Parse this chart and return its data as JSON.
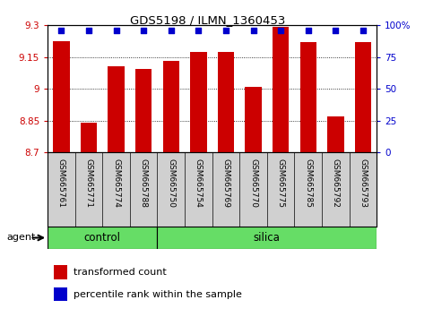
{
  "title": "GDS5198 / ILMN_1360453",
  "samples": [
    "GSM665761",
    "GSM665771",
    "GSM665774",
    "GSM665788",
    "GSM665750",
    "GSM665754",
    "GSM665769",
    "GSM665770",
    "GSM665775",
    "GSM665785",
    "GSM665792",
    "GSM665793"
  ],
  "transformed_counts": [
    9.225,
    8.84,
    9.105,
    9.095,
    9.13,
    9.175,
    9.175,
    9.01,
    9.295,
    9.22,
    8.87,
    9.22
  ],
  "percentile_ranks": [
    96,
    96,
    96,
    96,
    96,
    96,
    96,
    96,
    96,
    96,
    96,
    96
  ],
  "ymin": 8.7,
  "ymax": 9.3,
  "yticks": [
    8.7,
    8.85,
    9.0,
    9.15,
    9.3
  ],
  "ytick_labels": [
    "8.7",
    "8.85",
    "9",
    "9.15",
    "9.3"
  ],
  "y2ticks": [
    0,
    25,
    50,
    75,
    100
  ],
  "y2tick_labels": [
    "0",
    "25",
    "50",
    "75",
    "100%"
  ],
  "bar_color": "#CC0000",
  "dot_color": "#0000CC",
  "n_control": 4,
  "control_label": "control",
  "silica_label": "silica",
  "agent_label": "agent",
  "legend_bar_label": "transformed count",
  "legend_dot_label": "percentile rank within the sample",
  "green_bg": "#66DD66",
  "label_bg": "#D0D0D0",
  "tick_color_left": "#CC0000",
  "tick_color_right": "#0000CC"
}
